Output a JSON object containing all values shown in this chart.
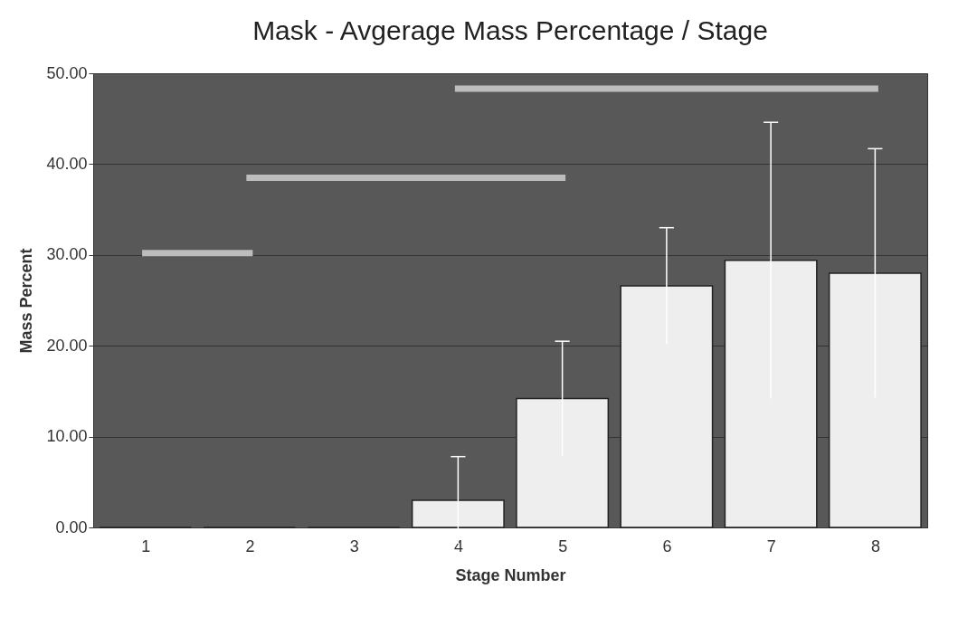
{
  "chart_data": {
    "type": "bar",
    "title": "Mask - Avgerage Mass Percentage / Stage",
    "xlabel": "Stage Number",
    "ylabel": "Mass Percent",
    "categories": [
      "1",
      "2",
      "3",
      "4",
      "5",
      "6",
      "7",
      "8"
    ],
    "series": [
      {
        "color": "#eeeeee",
        "values": [
          0,
          0,
          0,
          3.0,
          14.2,
          26.6,
          29.4,
          28.0
        ],
        "errors": [
          null,
          null,
          null,
          4.8,
          6.3,
          6.4,
          15.2,
          13.7
        ]
      },
      {
        "type": "line",
        "color": "#bdbdbd",
        "values": [
          30.2,
          30.2,
          null,
          null,
          null,
          null,
          null,
          null
        ]
      },
      {
        "type": "line",
        "color": "#bdbdbd",
        "values": [
          null,
          38.5,
          38.5,
          38.5,
          38.5,
          null,
          null,
          null
        ]
      },
      {
        "type": "line",
        "color": "#bdbdbd",
        "values": [
          null,
          null,
          null,
          48.3,
          48.3,
          48.3,
          48.3,
          48.3
        ]
      }
    ],
    "ylim": [
      0,
      50
    ],
    "yticks": [
      {
        "value": 0,
        "label": "0.00"
      },
      {
        "value": 10,
        "label": "10.00"
      },
      {
        "value": 20,
        "label": "20.00"
      },
      {
        "value": 30,
        "label": "30.00"
      },
      {
        "value": 40,
        "label": "40.00"
      },
      {
        "value": 50,
        "label": "50.00"
      }
    ],
    "grid": "y"
  }
}
